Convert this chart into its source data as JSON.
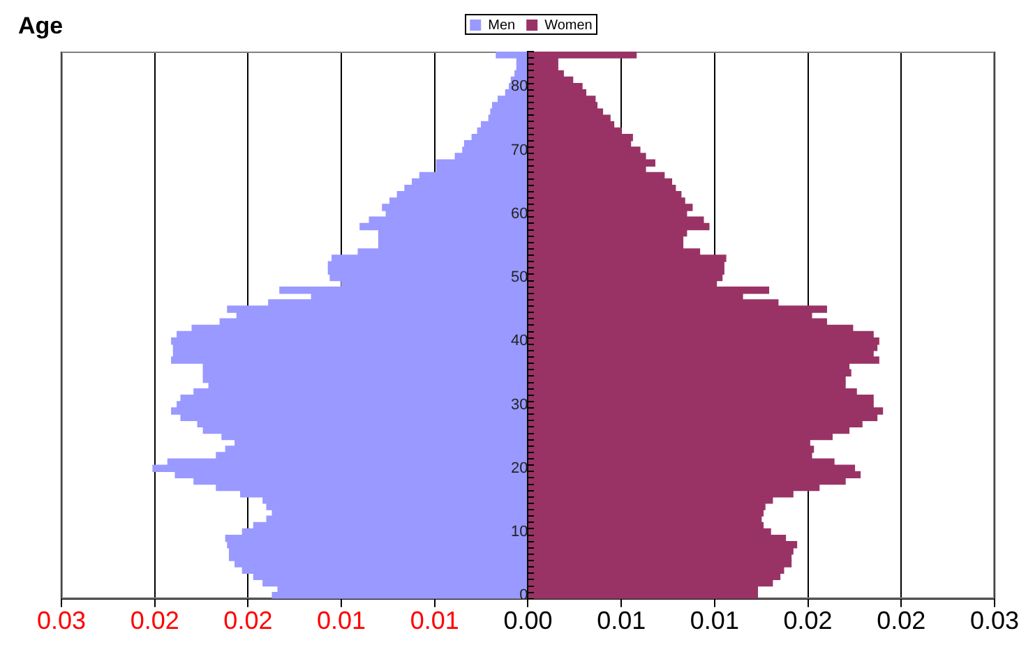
{
  "chart_data": {
    "type": "bar",
    "orientation": "horizontal",
    "stacked": true,
    "ylabel": "Age",
    "categories": [
      null,
      null,
      null,
      null,
      null,
      "80",
      null,
      null,
      null,
      null,
      null,
      null,
      null,
      null,
      null,
      "70",
      null,
      null,
      null,
      null,
      null,
      null,
      null,
      null,
      null,
      "60",
      null,
      null,
      null,
      null,
      null,
      null,
      null,
      null,
      null,
      "50",
      null,
      null,
      null,
      null,
      null,
      null,
      null,
      null,
      null,
      "40",
      null,
      null,
      null,
      null,
      null,
      null,
      null,
      null,
      null,
      "30",
      null,
      null,
      null,
      null,
      null,
      null,
      null,
      null,
      null,
      "20",
      null,
      null,
      null,
      null,
      null,
      null,
      null,
      null,
      null,
      "10",
      null,
      null,
      null,
      null,
      null,
      null,
      null,
      null,
      null,
      "0"
    ],
    "series": [
      {
        "name": "Men",
        "color": "#9999ff",
        "values": [
          -0.0017,
          -0.0006,
          -0.0006,
          -0.0007,
          -0.0009,
          -0.001,
          -0.0012,
          -0.0016,
          -0.0019,
          -0.002,
          -0.0021,
          -0.0025,
          -0.0027,
          -0.003,
          -0.0034,
          -0.0035,
          -0.0039,
          -0.0049,
          -0.0049,
          -0.0058,
          -0.0062,
          -0.0066,
          -0.007,
          -0.0074,
          -0.0078,
          -0.0076,
          -0.0085,
          -0.009,
          -0.008,
          -0.008,
          -0.008,
          -0.0091,
          -0.0105,
          -0.0107,
          -0.0107,
          -0.0106,
          -0.01,
          -0.0133,
          -0.0116,
          -0.0139,
          -0.0161,
          -0.0156,
          -0.0165,
          -0.018,
          -0.0188,
          -0.0191,
          -0.019,
          -0.019,
          -0.0191,
          -0.0174,
          -0.0174,
          -0.0174,
          -0.0171,
          -0.0179,
          -0.0186,
          -0.0188,
          -0.0191,
          -0.0186,
          -0.0177,
          -0.0174,
          -0.0164,
          -0.0157,
          -0.0162,
          -0.0167,
          -0.0193,
          -0.0201,
          -0.0189,
          -0.0179,
          -0.0167,
          -0.0154,
          -0.0142,
          -0.014,
          -0.0137,
          -0.014,
          -0.0147,
          -0.0153,
          -0.0162,
          -0.0161,
          -0.016,
          -0.016,
          -0.0157,
          -0.0153,
          -0.0147,
          -0.0142,
          -0.0134,
          -0.0137
        ]
      },
      {
        "name": "Women",
        "color": "#993366",
        "values": [
          0.0058,
          0.0016,
          0.0016,
          0.0019,
          0.0024,
          0.0029,
          0.0031,
          0.0036,
          0.0037,
          0.004,
          0.0044,
          0.0046,
          0.005,
          0.0056,
          0.0055,
          0.006,
          0.0063,
          0.0068,
          0.0063,
          0.0073,
          0.0077,
          0.0079,
          0.0082,
          0.0084,
          0.0088,
          0.0085,
          0.0094,
          0.0097,
          0.0085,
          0.0083,
          0.0083,
          0.0092,
          0.0106,
          0.0105,
          0.0105,
          0.0104,
          0.0101,
          0.0129,
          0.0115,
          0.0134,
          0.016,
          0.0152,
          0.016,
          0.0174,
          0.0185,
          0.0188,
          0.0187,
          0.0185,
          0.0188,
          0.0172,
          0.0173,
          0.017,
          0.017,
          0.0176,
          0.0185,
          0.0185,
          0.019,
          0.0187,
          0.0179,
          0.0172,
          0.0163,
          0.0151,
          0.0153,
          0.0152,
          0.0164,
          0.0175,
          0.0178,
          0.017,
          0.0156,
          0.0142,
          0.0131,
          0.0127,
          0.0126,
          0.0125,
          0.0126,
          0.013,
          0.0138,
          0.0144,
          0.0142,
          0.0141,
          0.0141,
          0.0137,
          0.0135,
          0.0131,
          0.0123,
          0.0123
        ]
      }
    ],
    "xlim": [
      -0.025,
      0.025
    ],
    "xticks": [
      {
        "value": -0.025,
        "label": "0.03"
      },
      {
        "value": -0.02,
        "label": "0.02"
      },
      {
        "value": -0.015,
        "label": "0.02"
      },
      {
        "value": -0.01,
        "label": "0.01"
      },
      {
        "value": -0.005,
        "label": "0.01"
      },
      {
        "value": 0,
        "label": "0.00"
      },
      {
        "value": 0.005,
        "label": "0.01"
      },
      {
        "value": 0.01,
        "label": "0.01"
      },
      {
        "value": 0.015,
        "label": "0.02"
      },
      {
        "value": 0.02,
        "label": "0.02"
      },
      {
        "value": 0.025,
        "label": "0.03"
      }
    ],
    "grid": "x",
    "legend": "top"
  }
}
